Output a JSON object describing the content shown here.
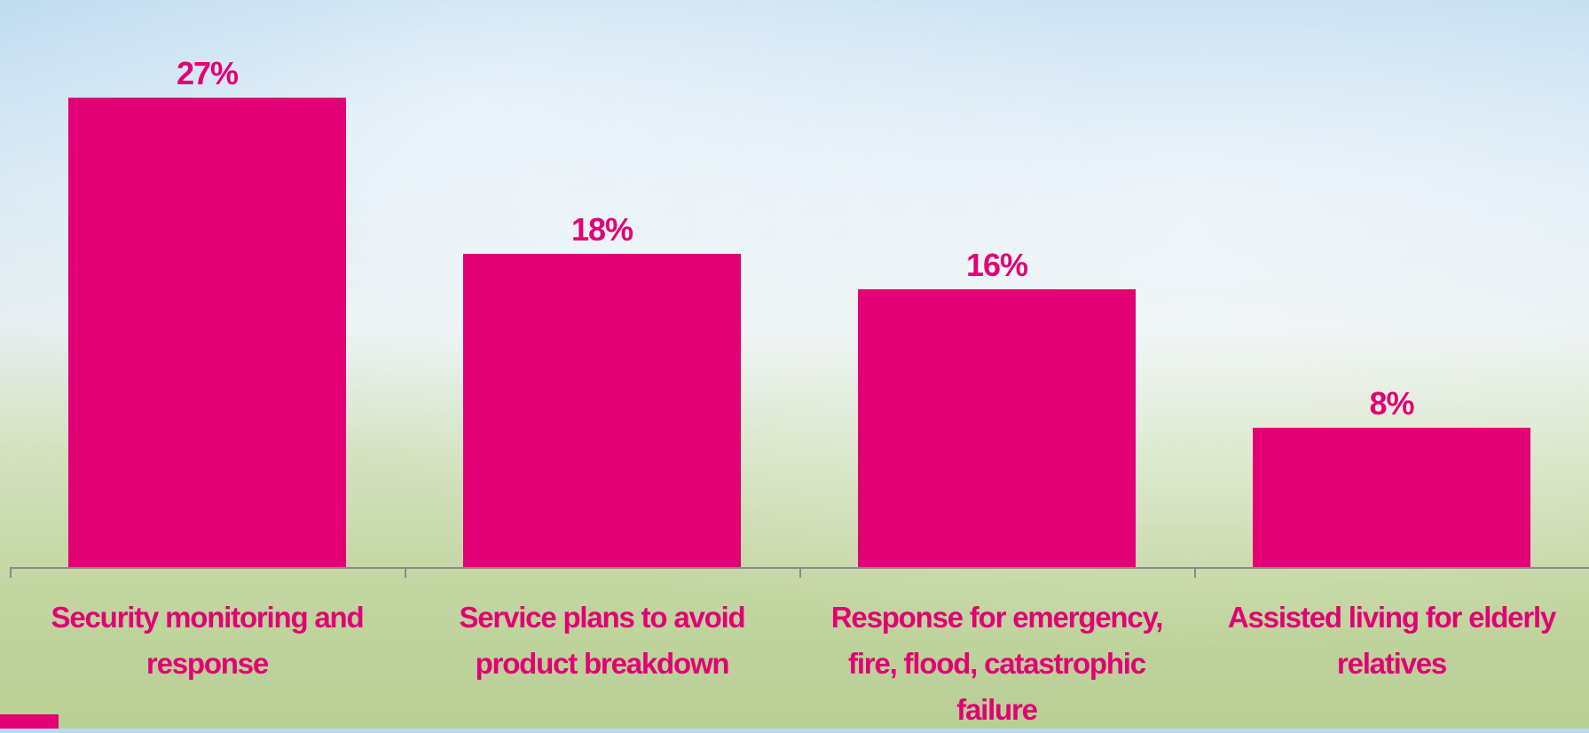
{
  "chart_data": {
    "type": "bar",
    "categories": [
      "Security monitoring and response",
      "Service plans to avoid product breakdown",
      "Response for emergency, fire, flood, catastrophic failure",
      "Assisted living for elderly relatives"
    ],
    "values": [
      27,
      18,
      16,
      8
    ],
    "value_labels": [
      "27%",
      "18%",
      "16%",
      "8%"
    ],
    "color": "#e20074"
  }
}
